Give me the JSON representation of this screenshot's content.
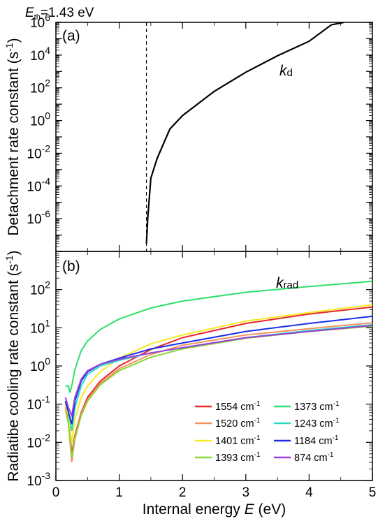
{
  "chart_data": [
    {
      "panel": "(a)",
      "type": "line",
      "ylabel": "Detachment rate constant (s",
      "ylabel_sup": "-1",
      "ylabel_close": ")",
      "yscale": "log",
      "xlim": [
        0,
        5
      ],
      "ylim_exp": [
        -8,
        6
      ],
      "ytick_exps": [
        -6,
        -4,
        -2,
        0,
        2,
        4,
        6
      ],
      "threshold": {
        "value": 1.43,
        "label_var": "E",
        "label_sub": "th",
        "label_text": "=1.43 eV"
      },
      "series": [
        {
          "name_main": "k",
          "name_sub": "d",
          "color": "#000000",
          "points": [
            [
              1.43,
              3e-08
            ],
            [
              1.45,
              1e-06
            ],
            [
              1.5,
              0.0003
            ],
            [
              1.6,
              0.005
            ],
            [
              1.8,
              0.3
            ],
            [
              2.0,
              2
            ],
            [
              2.5,
              60
            ],
            [
              3.0,
              900
            ],
            [
              3.5,
              9000
            ],
            [
              4.0,
              70000
            ],
            [
              4.35,
              700000
            ],
            [
              4.55,
              1000000
            ]
          ]
        }
      ]
    },
    {
      "panel": "(b)",
      "type": "line",
      "xlabel": "Internal energy ",
      "xlabel_var": "E",
      "xlabel_unit": " (eV)",
      "ylabel": "Radiatibe cooling rate constant (s",
      "ylabel_sup": "-1",
      "ylabel_close": ")",
      "yscale": "log",
      "xlim": [
        0,
        5
      ],
      "ylim_exp": [
        -3,
        3
      ],
      "xticks": [
        "0",
        "1",
        "2",
        "3",
        "4",
        "5"
      ],
      "ytick_exps": [
        -3,
        -2,
        -1,
        0,
        1,
        2
      ],
      "curve_label": {
        "main": "k",
        "sub": "rad"
      },
      "series": [
        {
          "name": "1554 cm",
          "sup": "-1",
          "color": "#e8272b",
          "points": [
            [
              0.15,
              0.1
            ],
            [
              0.2,
              0.04
            ],
            [
              0.25,
              0.005
            ],
            [
              0.3,
              0.015
            ],
            [
              0.4,
              0.06
            ],
            [
              0.5,
              0.15
            ],
            [
              0.7,
              0.4
            ],
            [
              1.0,
              1.0
            ],
            [
              1.5,
              2.7
            ],
            [
              2.0,
              5.5
            ],
            [
              3.0,
              13
            ],
            [
              4.0,
              23
            ],
            [
              5.0,
              35
            ]
          ]
        },
        {
          "name": "1520 cm",
          "sup": "-1",
          "color": "#f4915d",
          "points": [
            [
              0.15,
              0.08
            ],
            [
              0.2,
              0.03
            ],
            [
              0.25,
              0.003
            ],
            [
              0.3,
              0.013
            ],
            [
              0.4,
              0.055
            ],
            [
              0.5,
              0.13
            ],
            [
              0.7,
              0.35
            ],
            [
              1.0,
              0.85
            ],
            [
              1.5,
              2.0
            ],
            [
              2.0,
              3.5
            ],
            [
              3.0,
              6.5
            ],
            [
              4.0,
              9.5
            ],
            [
              5.0,
              13.5
            ]
          ]
        },
        {
          "name": "1401 cm",
          "sup": "-1",
          "color": "#f7ea21",
          "points": [
            [
              0.15,
              0.1
            ],
            [
              0.2,
              0.05
            ],
            [
              0.25,
              0.01
            ],
            [
              0.3,
              0.04
            ],
            [
              0.4,
              0.15
            ],
            [
              0.5,
              0.3
            ],
            [
              0.7,
              0.7
            ],
            [
              1.0,
              1.6
            ],
            [
              1.5,
              3.8
            ],
            [
              2.0,
              6.5
            ],
            [
              3.0,
              15
            ],
            [
              4.0,
              25
            ],
            [
              5.0,
              40
            ]
          ]
        },
        {
          "name": "1393 cm",
          "sup": "-1",
          "color": "#8dd63a",
          "points": [
            [
              0.15,
              0.07
            ],
            [
              0.2,
              0.03
            ],
            [
              0.25,
              0.004
            ],
            [
              0.3,
              0.012
            ],
            [
              0.4,
              0.05
            ],
            [
              0.5,
              0.12
            ],
            [
              0.7,
              0.32
            ],
            [
              1.0,
              0.75
            ],
            [
              1.5,
              1.7
            ],
            [
              2.0,
              2.8
            ],
            [
              3.0,
              5.3
            ],
            [
              4.0,
              8.0
            ],
            [
              5.0,
              11
            ]
          ]
        },
        {
          "name": "1373 cm",
          "sup": "-1",
          "color": "#2fe06a",
          "points": [
            [
              0.15,
              0.3
            ],
            [
              0.2,
              0.3
            ],
            [
              0.22,
              0.2
            ],
            [
              0.25,
              0.3
            ],
            [
              0.3,
              0.8
            ],
            [
              0.4,
              2.5
            ],
            [
              0.5,
              4.5
            ],
            [
              0.7,
              9
            ],
            [
              1.0,
              17
            ],
            [
              1.5,
              33
            ],
            [
              2.0,
              50
            ],
            [
              3.0,
              85
            ],
            [
              4.0,
              120
            ],
            [
              5.0,
              165
            ]
          ]
        },
        {
          "name": "1243 cm",
          "sup": "-1",
          "color": "#2ad8c8",
          "points": [
            [
              0.15,
              0.12
            ],
            [
              0.2,
              0.06
            ],
            [
              0.25,
              0.02
            ],
            [
              0.3,
              0.08
            ],
            [
              0.4,
              0.3
            ],
            [
              0.5,
              0.6
            ],
            [
              0.7,
              1.0
            ],
            [
              1.0,
              1.4
            ],
            [
              1.5,
              2.2
            ],
            [
              2.0,
              3.0
            ],
            [
              3.0,
              5.5
            ],
            [
              4.0,
              8.5
            ],
            [
              5.0,
              12
            ]
          ]
        },
        {
          "name": "1184 cm",
          "sup": "-1",
          "color": "#1a2ee8",
          "points": [
            [
              0.15,
              0.12
            ],
            [
              0.2,
              0.06
            ],
            [
              0.25,
              0.03
            ],
            [
              0.3,
              0.12
            ],
            [
              0.4,
              0.4
            ],
            [
              0.5,
              0.7
            ],
            [
              0.7,
              1.1
            ],
            [
              1.0,
              1.6
            ],
            [
              1.5,
              2.8
            ],
            [
              2.0,
              4.0
            ],
            [
              3.0,
              8.0
            ],
            [
              4.0,
              13
            ],
            [
              5.0,
              20
            ]
          ]
        },
        {
          "name": "874 cm",
          "sup": "-1",
          "color": "#9b3fd8",
          "points": [
            [
              0.15,
              0.15
            ],
            [
              0.2,
              0.08
            ],
            [
              0.25,
              0.05
            ],
            [
              0.3,
              0.15
            ],
            [
              0.4,
              0.45
            ],
            [
              0.5,
              0.75
            ],
            [
              0.7,
              1.1
            ],
            [
              1.0,
              1.5
            ],
            [
              1.5,
              2.2
            ],
            [
              2.0,
              3.0
            ],
            [
              3.0,
              5.5
            ],
            [
              4.0,
              8.0
            ],
            [
              5.0,
              11.5
            ]
          ]
        }
      ]
    }
  ]
}
